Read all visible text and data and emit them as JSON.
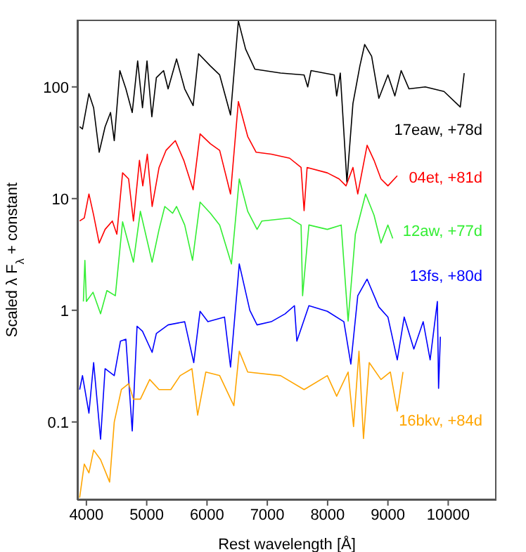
{
  "chart_data": {
    "type": "line",
    "xlabel": "Rest wavelength [Å]",
    "ylabel": "Scaled λ F$_{λ}$ + constant",
    "log": "y",
    "xlim": [
      3850,
      10800
    ],
    "xticks": [
      4000,
      5000,
      6000,
      7000,
      8000,
      9000,
      10000
    ],
    "ylim": [
      0.02,
      400
    ],
    "yticks": [
      0.1,
      1,
      10,
      100
    ],
    "series": [
      {
        "name": "17eaw, +78d",
        "color": "#000000",
        "x": [
          3888,
          3935,
          4042,
          4120,
          4212,
          4310,
          4400,
          4462,
          4555,
          4655,
          4760,
          4850,
          4930,
          5005,
          5085,
          5160,
          5280,
          5355,
          5495,
          5630,
          5770,
          5860,
          6055,
          6210,
          6390,
          6520,
          6640,
          6795,
          7220,
          7610,
          7670,
          7725,
          8110,
          8150,
          8210,
          8320,
          8420,
          8535,
          8615,
          8730,
          8850,
          9000,
          9115,
          9220,
          9350,
          9620,
          9930,
          10200,
          10265
        ],
        "values": [
          44,
          42,
          87,
          65,
          26,
          44,
          59,
          33,
          140,
          96,
          59,
          171,
          65,
          171,
          54,
          121,
          140,
          96,
          178,
          96,
          68,
          198,
          154,
          128,
          56,
          390,
          218,
          144,
          133,
          128,
          100,
          140,
          128,
          83,
          133,
          14,
          71,
          154,
          240,
          188,
          79,
          128,
          83,
          140,
          96,
          100,
          91,
          66,
          133
        ]
      },
      {
        "name": "04et, +81d",
        "color": "#ff0000",
        "x": [
          3888,
          3965,
          4042,
          4120,
          4212,
          4310,
          4430,
          4505,
          4600,
          4700,
          4780,
          4880,
          4935,
          5010,
          5090,
          5205,
          5320,
          5475,
          5615,
          5770,
          5885,
          6055,
          6210,
          6390,
          6520,
          6675,
          6815,
          7065,
          7370,
          7560,
          7610,
          7660,
          7995,
          8190,
          8305,
          8420,
          8500,
          8655,
          8770,
          8885,
          9000,
          9155
        ],
        "values": [
          6.3,
          6.7,
          11,
          7.1,
          4,
          5.3,
          6.3,
          4.8,
          17,
          15,
          6.3,
          22,
          13,
          25,
          8.5,
          19,
          27,
          33,
          22,
          12,
          38,
          31,
          27,
          11,
          74,
          36,
          26,
          25,
          23,
          19,
          7.8,
          19,
          17,
          15,
          13,
          19,
          11,
          30,
          22,
          15,
          13,
          16
        ]
      },
      {
        "name": "12aw, +77d",
        "color": "#33ee33",
        "x": [
          3950,
          3975,
          4000,
          4110,
          4235,
          4340,
          4480,
          4600,
          4780,
          4895,
          5090,
          5205,
          5300,
          5430,
          5495,
          5630,
          5760,
          5885,
          6055,
          6210,
          6405,
          6535,
          6675,
          6830,
          6910,
          7370,
          7560,
          7585,
          7690,
          7995,
          8225,
          8340,
          8460,
          8630,
          8770,
          8885,
          9000,
          9080
        ],
        "values": [
          1.2,
          2.8,
          1.2,
          1.45,
          0.93,
          1.5,
          1.35,
          6.2,
          2.7,
          7.7,
          2.7,
          5.3,
          8.5,
          7.4,
          8.5,
          5.8,
          2.8,
          9.3,
          7.4,
          5.8,
          2.6,
          15,
          7.7,
          5.3,
          6.3,
          6.7,
          5.8,
          1.35,
          5.8,
          5.3,
          5.8,
          0.8,
          4.8,
          11,
          7.1,
          4,
          5.8,
          4.4
        ]
      },
      {
        "name": "13fs, +80d",
        "color": "#0000ff",
        "x": [
          3888,
          3935,
          4042,
          4120,
          4235,
          4310,
          4462,
          4565,
          4655,
          4760,
          4840,
          4930,
          5090,
          5160,
          5355,
          5630,
          5780,
          5885,
          6015,
          6290,
          6390,
          6535,
          6710,
          6830,
          7065,
          7295,
          7450,
          7490,
          7690,
          7995,
          8270,
          8385,
          8500,
          8655,
          8850,
          9000,
          9155,
          9270,
          9430,
          9585,
          9700,
          9820,
          9840,
          9870
        ],
        "values": [
          0.195,
          0.26,
          0.12,
          0.34,
          0.07,
          0.3,
          0.26,
          0.53,
          0.55,
          0.083,
          0.72,
          0.65,
          0.42,
          0.62,
          0.74,
          0.79,
          0.34,
          0.98,
          0.79,
          0.87,
          0.31,
          2.6,
          1,
          0.74,
          0.79,
          0.93,
          1.1,
          0.53,
          1.1,
          0.98,
          0.79,
          0.33,
          1.35,
          1.9,
          1.07,
          0.87,
          0.36,
          0.87,
          0.45,
          0.79,
          0.36,
          1.2,
          0.2,
          0.58
        ]
      },
      {
        "name": "16bkv, +84d",
        "color": "#ffa500",
        "x": [
          3888,
          3965,
          4042,
          4120,
          4235,
          4385,
          4462,
          4580,
          4700,
          4780,
          4895,
          5050,
          5205,
          5400,
          5555,
          5750,
          5845,
          5980,
          6210,
          6445,
          6535,
          6675,
          7220,
          7610,
          7995,
          8150,
          8340,
          8430,
          8520,
          8595,
          8690,
          8885,
          9040,
          9155,
          9250
        ],
        "values": [
          0.021,
          0.042,
          0.035,
          0.056,
          0.046,
          0.029,
          0.1,
          0.195,
          0.22,
          0.16,
          0.16,
          0.24,
          0.195,
          0.195,
          0.26,
          0.3,
          0.115,
          0.28,
          0.26,
          0.14,
          0.43,
          0.28,
          0.26,
          0.195,
          0.26,
          0.17,
          0.28,
          0.091,
          0.43,
          0.071,
          0.34,
          0.24,
          0.28,
          0.125,
          0.28
        ]
      }
    ]
  }
}
